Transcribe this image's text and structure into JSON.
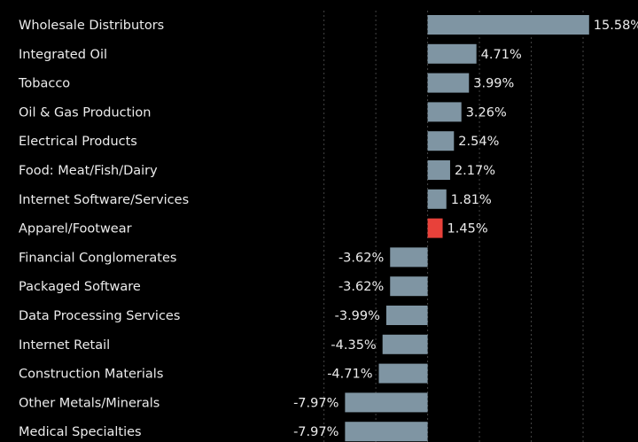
{
  "chart_data": {
    "type": "hbar",
    "categories": [
      "Wholesale Distributors",
      "Integrated Oil",
      "Tobacco",
      "Oil & Gas Production",
      "Electrical Products",
      "Food: Meat/Fish/Dairy",
      "Internet Software/Services",
      "Apparel/Footwear",
      "Financial Conglomerates",
      "Packaged Software",
      "Data Processing Services",
      "Internet Retail",
      "Construction Materials",
      "Other Metals/Minerals",
      "Medical Specialties"
    ],
    "values": [
      15.58,
      4.71,
      3.99,
      3.26,
      2.54,
      2.17,
      1.81,
      1.45,
      -3.62,
      -3.62,
      -3.99,
      -4.35,
      -4.71,
      -7.97,
      -7.97
    ],
    "value_labels": [
      "15.58%",
      "4.71%",
      "3.99%",
      "3.26%",
      "2.54%",
      "2.17%",
      "1.81%",
      "1.45%",
      "-3.62%",
      "-3.62%",
      "-3.99%",
      "-4.35%",
      "-4.71%",
      "-7.97%",
      "-7.97%"
    ],
    "colors": [
      "#7f95a3",
      "#7f95a3",
      "#7f95a3",
      "#7f95a3",
      "#7f95a3",
      "#7f95a3",
      "#7f95a3",
      "#e8413a",
      "#7f95a3",
      "#7f95a3",
      "#7f95a3",
      "#7f95a3",
      "#7f95a3",
      "#7f95a3",
      "#7f95a3"
    ],
    "xlim": [
      -14.5,
      20.3
    ],
    "xticks": [
      -10,
      -5,
      0,
      5,
      10,
      15
    ],
    "grid": true
  }
}
